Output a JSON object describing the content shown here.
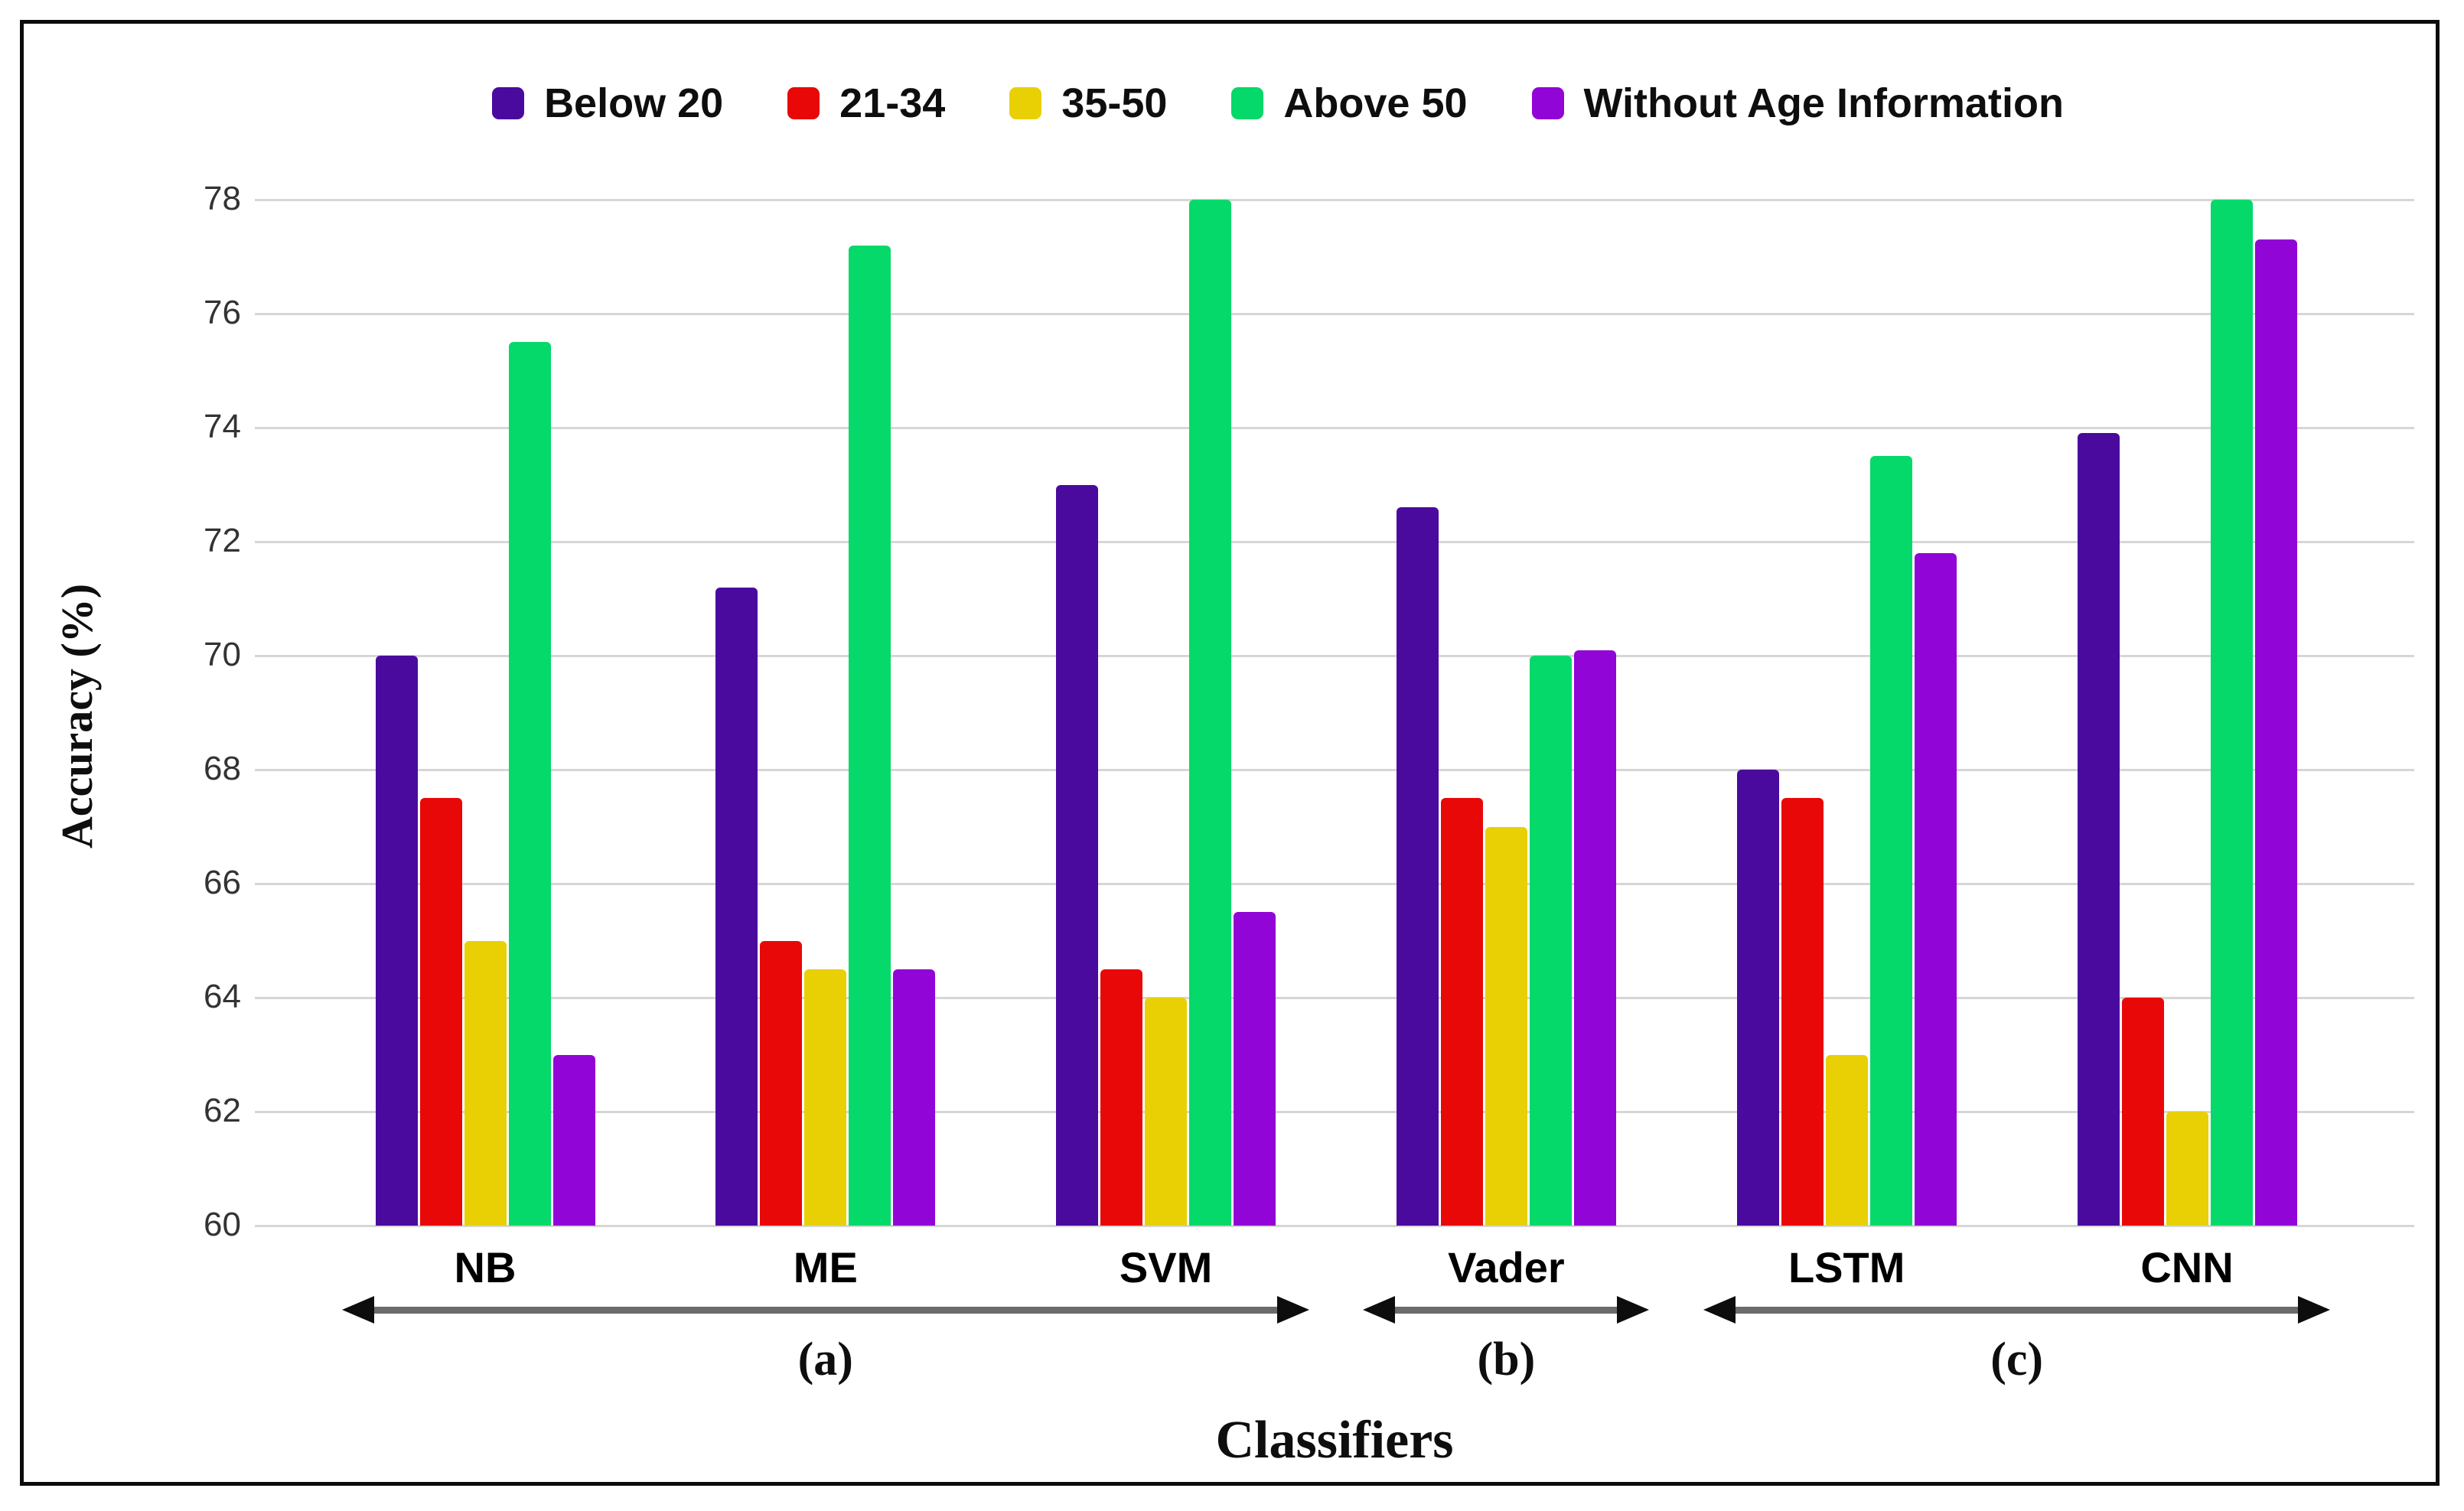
{
  "chart_data": {
    "type": "bar",
    "title": "",
    "categories": [
      "NB",
      "ME",
      "SVM",
      "Vader",
      "LSTM",
      "CNN"
    ],
    "series": [
      {
        "name": "Below 20",
        "color": "#4A0A9E",
        "values": [
          70.0,
          71.2,
          73.0,
          72.6,
          68.0,
          73.9
        ]
      },
      {
        "name": "21-34",
        "color": "#E90808",
        "values": [
          67.5,
          65.0,
          64.5,
          67.5,
          67.5,
          64.0
        ]
      },
      {
        "name": "35-50",
        "color": "#E8D005",
        "values": [
          65.0,
          64.5,
          64.0,
          67.0,
          63.0,
          62.0
        ]
      },
      {
        "name": "Above 50",
        "color": "#05D969",
        "values": [
          75.5,
          77.2,
          78.0,
          70.0,
          73.5,
          78.0
        ]
      },
      {
        "name": "Without Age Information",
        "color": "#9105D6",
        "values": [
          63.0,
          64.5,
          65.5,
          70.1,
          71.8,
          77.3
        ]
      }
    ],
    "ylabel": "Accuracy (%)",
    "xlabel": "Classifiers",
    "ylim": [
      60,
      78
    ],
    "yticks": [
      60,
      62,
      64,
      66,
      68,
      70,
      72,
      74,
      76,
      78
    ],
    "grid": "horizontal",
    "legend_position": "top",
    "group_annotations": [
      {
        "label": "(a)",
        "from": "NB",
        "to": "SVM"
      },
      {
        "label": "(b)",
        "from": "Vader",
        "to": "Vader"
      },
      {
        "label": "(c)",
        "from": "LSTM",
        "to": "CNN"
      }
    ]
  },
  "colors": {
    "grid": "#D6D6D6",
    "axis_text": "#333333",
    "arrow_shaft": "#6B6B6B",
    "arrow_head": "#0D0D0D",
    "frame_border": "#0B0B0B",
    "background": "#FFFFFF"
  }
}
